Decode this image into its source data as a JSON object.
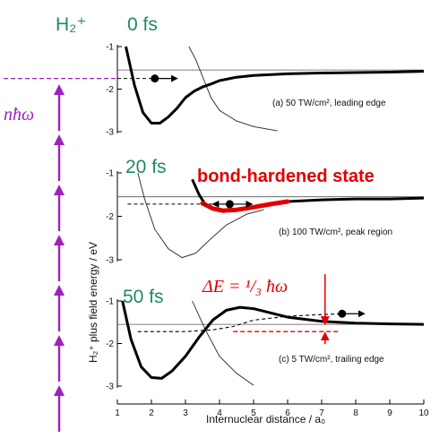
{
  "chart_data": {
    "type": "line",
    "species_label": "H₂⁺",
    "ylabel": "H₂⁺ plus field energy / eV",
    "xlabel": "Internuclear distance / a₀",
    "x_ticks": [
      "1",
      "2",
      "3",
      "4",
      "5",
      "6",
      "7",
      "8",
      "9",
      "10"
    ],
    "xlim": [
      1,
      10
    ],
    "photon_label": "nħω",
    "photon_arrow_count": 7,
    "colors": {
      "photon": "#a020c0",
      "time": "#1f8a68",
      "highlight": "#e00000",
      "curve": "#000000"
    },
    "panels": [
      {
        "time_label": "0 fs",
        "annotation": "(a)  50 TW/cm², leading edge",
        "ylim": [
          -3,
          -1
        ],
        "y_ticks": [
          "-1",
          "-2",
          "-3"
        ],
        "threshold_y": -1.55,
        "dressed_curve": [
          [
            1.25,
            -1.0
          ],
          [
            1.5,
            -1.9
          ],
          [
            1.75,
            -2.55
          ],
          [
            2.0,
            -2.8
          ],
          [
            2.25,
            -2.8
          ],
          [
            2.5,
            -2.65
          ],
          [
            2.75,
            -2.45
          ],
          [
            3.0,
            -2.2
          ],
          [
            3.25,
            -2.05
          ],
          [
            3.5,
            -1.95
          ],
          [
            3.75,
            -1.88
          ],
          [
            4.0,
            -1.8
          ],
          [
            4.5,
            -1.72
          ],
          [
            5.0,
            -1.68
          ],
          [
            6.0,
            -1.64
          ],
          [
            7.0,
            -1.62
          ],
          [
            8.0,
            -1.61
          ],
          [
            9.0,
            -1.6
          ],
          [
            10.0,
            -1.58
          ]
        ],
        "crossing_curve": [
          [
            3.1,
            -1.0
          ],
          [
            3.3,
            -1.3
          ],
          [
            3.55,
            -1.8
          ],
          [
            3.75,
            -2.2
          ],
          [
            4.0,
            -2.5
          ],
          [
            4.5,
            -2.75
          ],
          [
            5.0,
            -2.88
          ],
          [
            5.7,
            -2.98
          ]
        ],
        "wavepacket": {
          "x": 2.1,
          "y": -1.75,
          "direction": "right",
          "dashed_to": 1.0
        },
        "photon_level_y": -1.75
      },
      {
        "time_label": "20 fs",
        "annotation": "(b)  100 TW/cm², peak region",
        "highlight_label": "bond-hardened state",
        "ylim": [
          -3,
          -1
        ],
        "y_ticks": [
          "-1",
          "-2",
          "-3"
        ],
        "threshold_y": -1.55,
        "dressed_curve": [
          [
            3.2,
            -1.15
          ],
          [
            3.4,
            -1.5
          ],
          [
            3.6,
            -1.75
          ],
          [
            3.9,
            -1.85
          ],
          [
            4.2,
            -1.88
          ],
          [
            4.5,
            -1.85
          ],
          [
            5.0,
            -1.78
          ],
          [
            5.5,
            -1.72
          ],
          [
            6.0,
            -1.66
          ],
          [
            7.0,
            -1.62
          ],
          [
            8.0,
            -1.6
          ],
          [
            9.0,
            -1.6
          ],
          [
            10.0,
            -1.58
          ]
        ],
        "highlight_segment": [
          [
            3.5,
            -1.7
          ],
          [
            3.8,
            -1.82
          ],
          [
            4.1,
            -1.87
          ],
          [
            4.5,
            -1.85
          ],
          [
            5.0,
            -1.79
          ],
          [
            5.5,
            -1.72
          ],
          [
            6.0,
            -1.66
          ]
        ],
        "lower_curve": [
          [
            1.6,
            -1.0
          ],
          [
            1.8,
            -1.6
          ],
          [
            2.1,
            -2.3
          ],
          [
            2.5,
            -2.75
          ],
          [
            2.9,
            -2.95
          ],
          [
            3.3,
            -2.85
          ],
          [
            3.7,
            -2.55
          ],
          [
            4.2,
            -2.2
          ],
          [
            4.8,
            -1.95
          ],
          [
            5.3,
            -1.85
          ]
        ],
        "wavepacket": {
          "x": 4.3,
          "y": -1.72,
          "direction": "both",
          "dashed_to": 1.3
        }
      },
      {
        "time_label": "50 fs",
        "annotation": "(c)  5 TW/cm², trailing edge",
        "energy_gap_label": "ΔE = ¹/₃ ħω",
        "ylim": [
          -3,
          -1
        ],
        "y_ticks": [
          "-1",
          "-2",
          "-3"
        ],
        "threshold_y": -1.55,
        "dressed_curve": [
          [
            1.15,
            -1.0
          ],
          [
            1.4,
            -1.9
          ],
          [
            1.7,
            -2.55
          ],
          [
            2.0,
            -2.8
          ],
          [
            2.3,
            -2.82
          ],
          [
            2.6,
            -2.65
          ],
          [
            3.0,
            -2.3
          ],
          [
            3.4,
            -1.85
          ],
          [
            3.8,
            -1.45
          ],
          [
            4.2,
            -1.22
          ],
          [
            4.6,
            -1.15
          ],
          [
            5.0,
            -1.18
          ],
          [
            5.5,
            -1.28
          ],
          [
            6.0,
            -1.38
          ],
          [
            7.0,
            -1.48
          ],
          [
            8.0,
            -1.52
          ],
          [
            9.0,
            -1.54
          ],
          [
            10.0,
            -1.55
          ]
        ],
        "crossing_curve": [
          [
            3.2,
            -1.0
          ],
          [
            3.6,
            -1.7
          ],
          [
            4.0,
            -2.3
          ],
          [
            4.5,
            -2.7
          ],
          [
            5.0,
            -2.98
          ]
        ],
        "dashed_path": [
          [
            1.6,
            -1.72
          ],
          [
            3.0,
            -1.72
          ],
          [
            3.8,
            -1.68
          ],
          [
            4.4,
            -1.6
          ],
          [
            5.0,
            -1.45
          ],
          [
            6.0,
            -1.36
          ],
          [
            7.0,
            -1.32
          ],
          [
            7.6,
            -1.3
          ]
        ],
        "wavepacket": {
          "x": 7.6,
          "y": -1.3,
          "direction": "right"
        },
        "gap": {
          "x": 7.1,
          "upper": -1.55,
          "lower": -1.72
        }
      }
    ]
  }
}
